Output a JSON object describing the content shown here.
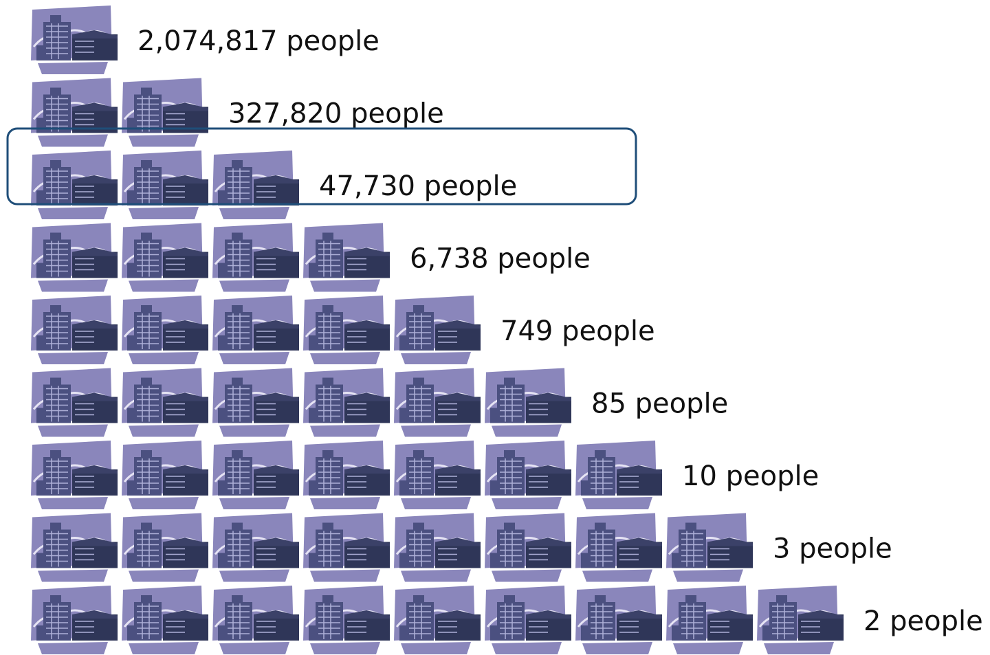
{
  "rows": [
    {
      "label": "2,074,817 people"
    },
    {
      "label": "327,820 people"
    },
    {
      "label": "47,730 people"
    },
    {
      "label": "6,738 people"
    },
    {
      "label": "749 people"
    },
    {
      "label": "85 people"
    },
    {
      "label": "10 people"
    },
    {
      "label": "3 people"
    },
    {
      "label": "2 people"
    }
  ]
}
